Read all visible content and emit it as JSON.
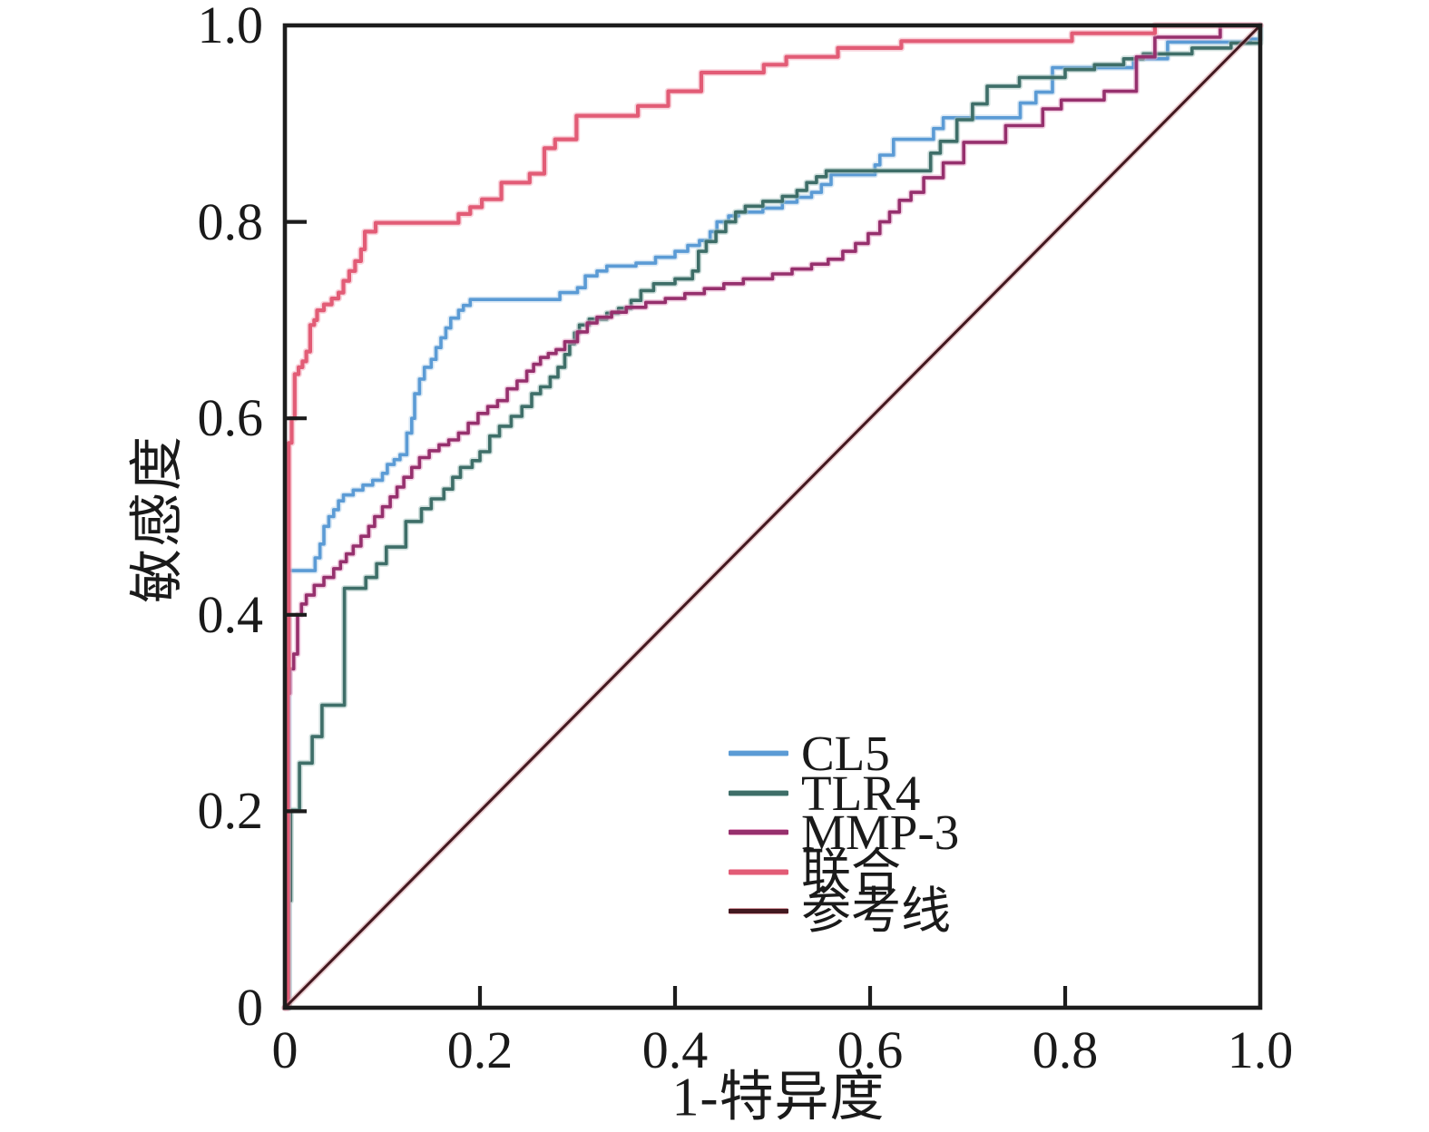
{
  "figure": {
    "type": "ROC curve figure",
    "background": "#ffffff",
    "text_color": "#1a1a1a"
  },
  "chart_data": {
    "type": "line",
    "subtype": "roc-step-curves",
    "title": "",
    "xlabel": "1-特异度",
    "ylabel": "敏感度",
    "xlim": [
      0,
      1
    ],
    "ylim": [
      0,
      1
    ],
    "grid": false,
    "legend_position": "inside lower-right, no frame",
    "axis_color": "#1c1c1c",
    "x_axis": {
      "ticks": [
        {
          "value": 0,
          "label": "0"
        },
        {
          "value": 0.2,
          "label": "0.2"
        },
        {
          "value": 0.4,
          "label": "0.4"
        },
        {
          "value": 0.6,
          "label": "0.6"
        },
        {
          "value": 0.8,
          "label": "0.8"
        },
        {
          "value": 1.0,
          "label": "1.0"
        }
      ]
    },
    "y_axis": {
      "ticks": [
        {
          "value": 0,
          "label": "0"
        },
        {
          "value": 0.2,
          "label": "0.2"
        },
        {
          "value": 0.4,
          "label": "0.4"
        },
        {
          "value": 0.6,
          "label": "0.6"
        },
        {
          "value": 0.8,
          "label": "0.8"
        },
        {
          "value": 1.0,
          "label": "1.0"
        }
      ]
    },
    "series": [
      {
        "name": "CL5",
        "color": "#5b9bd5",
        "halo": "#b7d4ec",
        "width": 3.6,
        "mode": "step",
        "points": [
          [
            0,
            0
          ],
          [
            0.004,
            0.445
          ],
          [
            0.028,
            0.445
          ],
          [
            0.031,
            0.458
          ],
          [
            0.036,
            0.472
          ],
          [
            0.04,
            0.49
          ],
          [
            0.045,
            0.5
          ],
          [
            0.05,
            0.507
          ],
          [
            0.055,
            0.516
          ],
          [
            0.06,
            0.522
          ],
          [
            0.07,
            0.527
          ],
          [
            0.08,
            0.532
          ],
          [
            0.09,
            0.537
          ],
          [
            0.1,
            0.544
          ],
          [
            0.105,
            0.553
          ],
          [
            0.112,
            0.558
          ],
          [
            0.118,
            0.563
          ],
          [
            0.125,
            0.585
          ],
          [
            0.13,
            0.6
          ],
          [
            0.133,
            0.625
          ],
          [
            0.138,
            0.64
          ],
          [
            0.143,
            0.652
          ],
          [
            0.15,
            0.66
          ],
          [
            0.155,
            0.672
          ],
          [
            0.16,
            0.682
          ],
          [
            0.165,
            0.692
          ],
          [
            0.17,
            0.702
          ],
          [
            0.178,
            0.71
          ],
          [
            0.183,
            0.715
          ],
          [
            0.19,
            0.721
          ],
          [
            0.275,
            0.721
          ],
          [
            0.282,
            0.728
          ],
          [
            0.3,
            0.733
          ],
          [
            0.308,
            0.745
          ],
          [
            0.32,
            0.75
          ],
          [
            0.33,
            0.755
          ],
          [
            0.36,
            0.758
          ],
          [
            0.38,
            0.764
          ],
          [
            0.4,
            0.77
          ],
          [
            0.413,
            0.776
          ],
          [
            0.425,
            0.781
          ],
          [
            0.436,
            0.79
          ],
          [
            0.443,
            0.8
          ],
          [
            0.455,
            0.806
          ],
          [
            0.465,
            0.81
          ],
          [
            0.49,
            0.814
          ],
          [
            0.51,
            0.82
          ],
          [
            0.525,
            0.825
          ],
          [
            0.54,
            0.83
          ],
          [
            0.55,
            0.838
          ],
          [
            0.56,
            0.848
          ],
          [
            0.605,
            0.858
          ],
          [
            0.61,
            0.868
          ],
          [
            0.624,
            0.884
          ],
          [
            0.665,
            0.895
          ],
          [
            0.675,
            0.906
          ],
          [
            0.754,
            0.921
          ],
          [
            0.77,
            0.932
          ],
          [
            0.787,
            0.957
          ],
          [
            0.87,
            0.966
          ],
          [
            0.905,
            0.983
          ],
          [
            0.99,
            0.986
          ],
          [
            1,
            1
          ]
        ]
      },
      {
        "name": "TLR4",
        "color": "#3e6e68",
        "halo": "#a3c2bd",
        "width": 3.6,
        "mode": "step",
        "points": [
          [
            0,
            0
          ],
          [
            0.004,
            0.109
          ],
          [
            0.006,
            0.201
          ],
          [
            0.015,
            0.249
          ],
          [
            0.028,
            0.276
          ],
          [
            0.038,
            0.308
          ],
          [
            0.061,
            0.427
          ],
          [
            0.083,
            0.438
          ],
          [
            0.094,
            0.452
          ],
          [
            0.104,
            0.469
          ],
          [
            0.124,
            0.495
          ],
          [
            0.14,
            0.508
          ],
          [
            0.15,
            0.518
          ],
          [
            0.163,
            0.528
          ],
          [
            0.172,
            0.54
          ],
          [
            0.18,
            0.55
          ],
          [
            0.192,
            0.557
          ],
          [
            0.2,
            0.566
          ],
          [
            0.21,
            0.582
          ],
          [
            0.22,
            0.592
          ],
          [
            0.232,
            0.602
          ],
          [
            0.243,
            0.612
          ],
          [
            0.253,
            0.625
          ],
          [
            0.262,
            0.632
          ],
          [
            0.272,
            0.642
          ],
          [
            0.28,
            0.652
          ],
          [
            0.287,
            0.665
          ],
          [
            0.292,
            0.676
          ],
          [
            0.297,
            0.687
          ],
          [
            0.302,
            0.695
          ],
          [
            0.312,
            0.701
          ],
          [
            0.33,
            0.707
          ],
          [
            0.342,
            0.712
          ],
          [
            0.355,
            0.72
          ],
          [
            0.365,
            0.73
          ],
          [
            0.378,
            0.737
          ],
          [
            0.4,
            0.742
          ],
          [
            0.418,
            0.75
          ],
          [
            0.424,
            0.77
          ],
          [
            0.432,
            0.78
          ],
          [
            0.442,
            0.79
          ],
          [
            0.452,
            0.8
          ],
          [
            0.462,
            0.81
          ],
          [
            0.472,
            0.816
          ],
          [
            0.49,
            0.821
          ],
          [
            0.51,
            0.826
          ],
          [
            0.525,
            0.832
          ],
          [
            0.535,
            0.84
          ],
          [
            0.545,
            0.846
          ],
          [
            0.555,
            0.852
          ],
          [
            0.655,
            0.852
          ],
          [
            0.662,
            0.87
          ],
          [
            0.672,
            0.882
          ],
          [
            0.689,
            0.904
          ],
          [
            0.705,
            0.92
          ],
          [
            0.72,
            0.938
          ],
          [
            0.753,
            0.947
          ],
          [
            0.8,
            0.955
          ],
          [
            0.83,
            0.96
          ],
          [
            0.86,
            0.966
          ],
          [
            0.88,
            0.971
          ],
          [
            0.93,
            0.977
          ],
          [
            0.97,
            0.982
          ],
          [
            1,
            1
          ]
        ]
      },
      {
        "name": "MMP-3",
        "color": "#96306d",
        "halo": "#e6a6c9",
        "width": 3.6,
        "mode": "step",
        "points": [
          [
            0,
            0
          ],
          [
            0.002,
            0.32
          ],
          [
            0.005,
            0.345
          ],
          [
            0.009,
            0.36
          ],
          [
            0.013,
            0.4
          ],
          [
            0.017,
            0.411
          ],
          [
            0.022,
            0.42
          ],
          [
            0.03,
            0.43
          ],
          [
            0.04,
            0.438
          ],
          [
            0.05,
            0.447
          ],
          [
            0.057,
            0.454
          ],
          [
            0.063,
            0.462
          ],
          [
            0.07,
            0.47
          ],
          [
            0.078,
            0.48
          ],
          [
            0.086,
            0.49
          ],
          [
            0.092,
            0.5
          ],
          [
            0.1,
            0.51
          ],
          [
            0.108,
            0.52
          ],
          [
            0.115,
            0.53
          ],
          [
            0.122,
            0.54
          ],
          [
            0.13,
            0.55
          ],
          [
            0.138,
            0.56
          ],
          [
            0.148,
            0.567
          ],
          [
            0.158,
            0.573
          ],
          [
            0.168,
            0.578
          ],
          [
            0.178,
            0.585
          ],
          [
            0.188,
            0.595
          ],
          [
            0.198,
            0.605
          ],
          [
            0.208,
            0.612
          ],
          [
            0.218,
            0.618
          ],
          [
            0.228,
            0.63
          ],
          [
            0.238,
            0.638
          ],
          [
            0.248,
            0.648
          ],
          [
            0.255,
            0.655
          ],
          [
            0.262,
            0.662
          ],
          [
            0.27,
            0.666
          ],
          [
            0.278,
            0.67
          ],
          [
            0.287,
            0.678
          ],
          [
            0.3,
            0.688
          ],
          [
            0.31,
            0.697
          ],
          [
            0.32,
            0.703
          ],
          [
            0.335,
            0.708
          ],
          [
            0.35,
            0.713
          ],
          [
            0.37,
            0.718
          ],
          [
            0.39,
            0.722
          ],
          [
            0.41,
            0.727
          ],
          [
            0.43,
            0.732
          ],
          [
            0.45,
            0.737
          ],
          [
            0.47,
            0.742
          ],
          [
            0.5,
            0.747
          ],
          [
            0.52,
            0.752
          ],
          [
            0.54,
            0.757
          ],
          [
            0.557,
            0.762
          ],
          [
            0.572,
            0.77
          ],
          [
            0.585,
            0.778
          ],
          [
            0.598,
            0.788
          ],
          [
            0.61,
            0.8
          ],
          [
            0.62,
            0.81
          ],
          [
            0.63,
            0.822
          ],
          [
            0.642,
            0.83
          ],
          [
            0.655,
            0.845
          ],
          [
            0.675,
            0.86
          ],
          [
            0.696,
            0.881
          ],
          [
            0.739,
            0.898
          ],
          [
            0.777,
            0.915
          ],
          [
            0.796,
            0.924
          ],
          [
            0.84,
            0.933
          ],
          [
            0.873,
            0.968
          ],
          [
            0.892,
            0.988
          ],
          [
            0.959,
            1
          ],
          [
            1,
            1
          ]
        ]
      },
      {
        "name": "联合",
        "color": "#e25c76",
        "halo": "#f3aab9",
        "width": 4.2,
        "mode": "step",
        "points": [
          [
            0,
            0
          ],
          [
            0.003,
            0.345
          ],
          [
            0.004,
            0.575
          ],
          [
            0.007,
            0.6
          ],
          [
            0.01,
            0.645
          ],
          [
            0.014,
            0.652
          ],
          [
            0.018,
            0.658
          ],
          [
            0.022,
            0.668
          ],
          [
            0.026,
            0.695
          ],
          [
            0.03,
            0.7
          ],
          [
            0.033,
            0.71
          ],
          [
            0.04,
            0.716
          ],
          [
            0.048,
            0.722
          ],
          [
            0.055,
            0.728
          ],
          [
            0.06,
            0.74
          ],
          [
            0.066,
            0.75
          ],
          [
            0.072,
            0.76
          ],
          [
            0.078,
            0.772
          ],
          [
            0.082,
            0.79
          ],
          [
            0.093,
            0.799
          ],
          [
            0.178,
            0.808
          ],
          [
            0.19,
            0.815
          ],
          [
            0.202,
            0.823
          ],
          [
            0.222,
            0.84
          ],
          [
            0.251,
            0.849
          ],
          [
            0.266,
            0.875
          ],
          [
            0.277,
            0.884
          ],
          [
            0.299,
            0.908
          ],
          [
            0.362,
            0.918
          ],
          [
            0.393,
            0.933
          ],
          [
            0.427,
            0.952
          ],
          [
            0.491,
            0.96
          ],
          [
            0.514,
            0.968
          ],
          [
            0.567,
            0.977
          ],
          [
            0.632,
            0.984
          ],
          [
            0.807,
            0.992
          ],
          [
            0.892,
            1
          ],
          [
            1,
            1
          ]
        ]
      },
      {
        "name": "参考线",
        "color": "#431920",
        "halo": "#d8a0a6",
        "width": 3.0,
        "mode": "linear",
        "points": [
          [
            0,
            0
          ],
          [
            1,
            1
          ]
        ]
      }
    ]
  },
  "labels": {
    "x_axis": "1-特异度",
    "y_axis": "敏感度"
  }
}
